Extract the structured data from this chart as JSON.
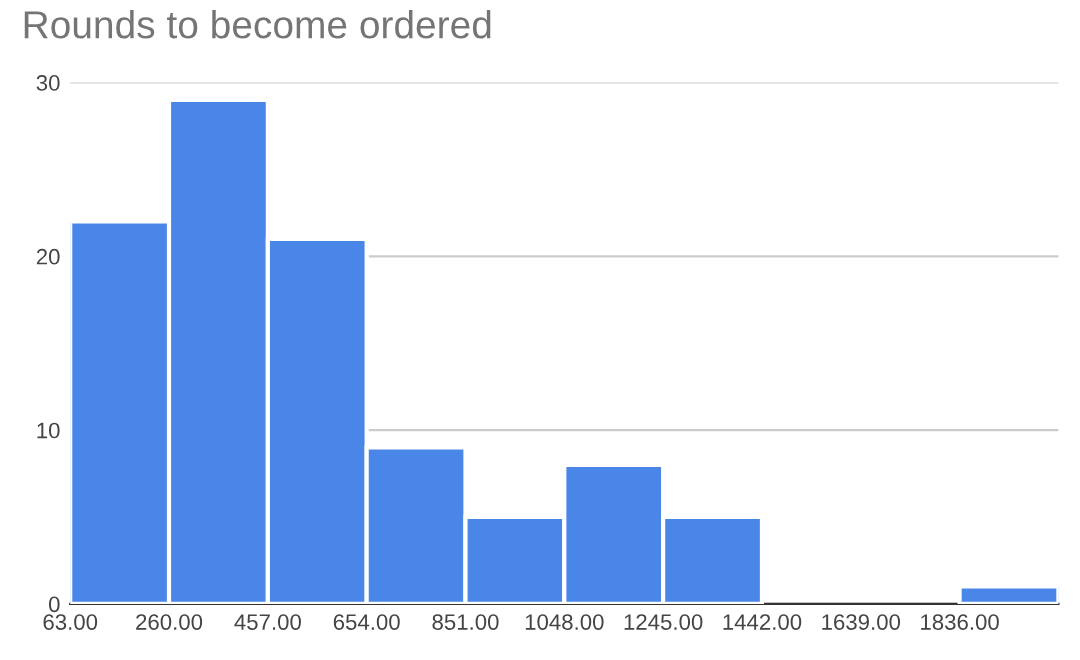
{
  "chart_data": {
    "type": "histogram",
    "title": "Rounds to become ordered",
    "bins": [
      63,
      260,
      457,
      654,
      851,
      1048,
      1245,
      1442,
      1639,
      1836,
      2033
    ],
    "values": [
      22,
      29,
      21,
      9,
      5,
      8,
      5,
      0,
      0,
      1
    ],
    "color": "#4a86e8",
    "xlim": [
      63,
      2033
    ],
    "xticks": [
      {
        "value": 63,
        "label": "63.00"
      },
      {
        "value": 260,
        "label": "260.00"
      },
      {
        "value": 457,
        "label": "457.00"
      },
      {
        "value": 654,
        "label": "654.00"
      },
      {
        "value": 851,
        "label": "851.00"
      },
      {
        "value": 1048,
        "label": "1048.00"
      },
      {
        "value": 1245,
        "label": "1245.00"
      },
      {
        "value": 1442,
        "label": "1442.00"
      },
      {
        "value": 1639,
        "label": "1639.00"
      },
      {
        "value": 1836,
        "label": "1836.00"
      }
    ],
    "ylim": [
      0,
      30
    ],
    "yticks": [
      0,
      10,
      20,
      30
    ],
    "grid": "y"
  }
}
